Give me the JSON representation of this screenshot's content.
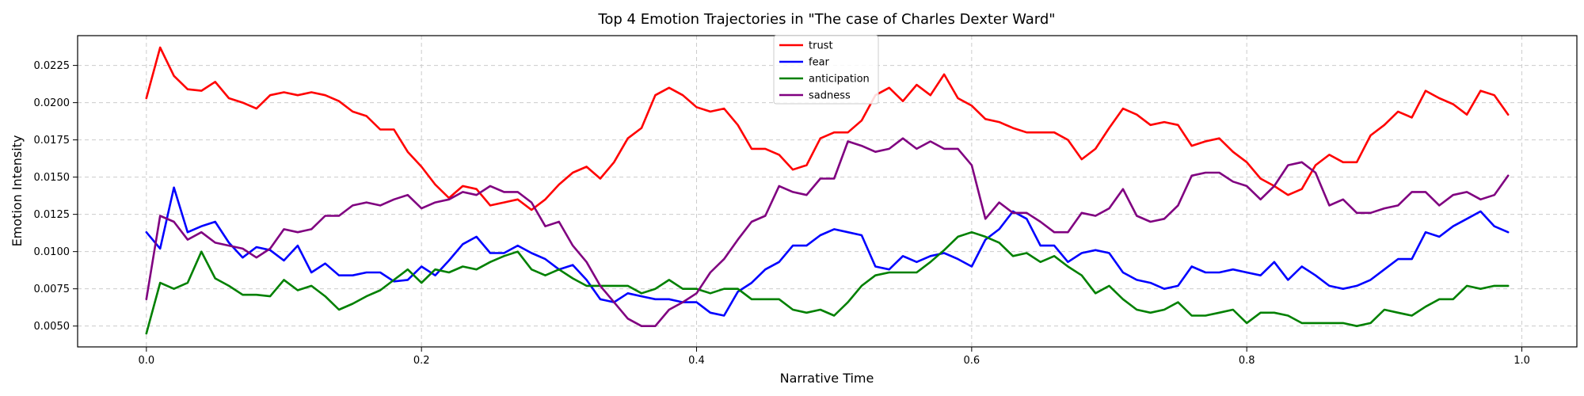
{
  "chart_data": {
    "type": "line",
    "title": "Top 4 Emotion Trajectories in \"The case of Charles Dexter Ward\"",
    "xlabel": "Narrative Time",
    "ylabel": "Emotion Intensity",
    "xlim": [
      -0.05,
      1.04
    ],
    "ylim": [
      0.0036,
      0.0245
    ],
    "grid": true,
    "legend_position": "top-center",
    "x_ticks": [
      0.0,
      0.2,
      0.4,
      0.6,
      0.8,
      1.0
    ],
    "x_tick_labels": [
      "0.0",
      "0.2",
      "0.4",
      "0.6",
      "0.8",
      "1.0"
    ],
    "y_ticks": [
      0.005,
      0.0075,
      0.01,
      0.0125,
      0.015,
      0.0175,
      0.02,
      0.0225
    ],
    "y_tick_labels": [
      "0.0050",
      "0.0075",
      "0.0100",
      "0.0125",
      "0.0150",
      "0.0175",
      "0.0200",
      "0.0225"
    ],
    "x_step": 0.01,
    "series": [
      {
        "name": "trust",
        "color": "#ff0000",
        "values": [
          0.0203,
          0.0237,
          0.0218,
          0.0209,
          0.0208,
          0.0214,
          0.0203,
          0.02,
          0.0196,
          0.0205,
          0.0207,
          0.0205,
          0.0207,
          0.0205,
          0.0201,
          0.0194,
          0.0191,
          0.0182,
          0.0182,
          0.0167,
          0.0157,
          0.0145,
          0.0136,
          0.0144,
          0.0142,
          0.0131,
          0.0133,
          0.0135,
          0.0128,
          0.0135,
          0.0145,
          0.0153,
          0.0157,
          0.0149,
          0.016,
          0.0176,
          0.0183,
          0.0205,
          0.021,
          0.0205,
          0.0197,
          0.0194,
          0.0196,
          0.0185,
          0.0169,
          0.0169,
          0.0165,
          0.0155,
          0.0158,
          0.0176,
          0.018,
          0.018,
          0.0188,
          0.0205,
          0.021,
          0.0201,
          0.0212,
          0.0205,
          0.0219,
          0.0203,
          0.0198,
          0.0189,
          0.0187,
          0.0183,
          0.018,
          0.018,
          0.018,
          0.0175,
          0.0162,
          0.0169,
          0.0183,
          0.0196,
          0.0192,
          0.0185,
          0.0187,
          0.0185,
          0.0171,
          0.0174,
          0.0176,
          0.0167,
          0.016,
          0.0149,
          0.0144,
          0.0138,
          0.0142,
          0.0158,
          0.0165,
          0.016,
          0.016,
          0.0178,
          0.0185,
          0.0194,
          0.019,
          0.0208,
          0.0203,
          0.0199,
          0.0192,
          0.0208,
          0.0205,
          0.0192
        ]
      },
      {
        "name": "fear",
        "color": "#0000ff",
        "values": [
          0.0113,
          0.0102,
          0.0143,
          0.0113,
          0.0117,
          0.012,
          0.0106,
          0.0096,
          0.0103,
          0.0101,
          0.0094,
          0.0104,
          0.0086,
          0.0092,
          0.0084,
          0.0084,
          0.0086,
          0.0086,
          0.008,
          0.0081,
          0.009,
          0.0084,
          0.0094,
          0.0105,
          0.011,
          0.0099,
          0.0099,
          0.0104,
          0.0099,
          0.0095,
          0.0088,
          0.0091,
          0.0081,
          0.0068,
          0.0066,
          0.0072,
          0.007,
          0.0068,
          0.0068,
          0.0066,
          0.0066,
          0.0059,
          0.0057,
          0.0073,
          0.0079,
          0.0088,
          0.0093,
          0.0104,
          0.0104,
          0.0111,
          0.0115,
          0.0113,
          0.0111,
          0.009,
          0.0088,
          0.0097,
          0.0093,
          0.0097,
          0.0099,
          0.0095,
          0.009,
          0.0108,
          0.0115,
          0.0127,
          0.0122,
          0.0104,
          0.0104,
          0.0093,
          0.0099,
          0.0101,
          0.0099,
          0.0086,
          0.0081,
          0.0079,
          0.0075,
          0.0077,
          0.009,
          0.0086,
          0.0086,
          0.0088,
          0.0086,
          0.0084,
          0.0093,
          0.0081,
          0.009,
          0.0084,
          0.0077,
          0.0075,
          0.0077,
          0.0081,
          0.0088,
          0.0095,
          0.0095,
          0.0113,
          0.011,
          0.0117,
          0.0122,
          0.0127,
          0.0117,
          0.0113
        ]
      },
      {
        "name": "anticipation",
        "color": "#008000",
        "values": [
          0.0045,
          0.0079,
          0.0075,
          0.0079,
          0.01,
          0.0082,
          0.0077,
          0.0071,
          0.0071,
          0.007,
          0.0081,
          0.0074,
          0.0077,
          0.007,
          0.0061,
          0.0065,
          0.007,
          0.0074,
          0.0081,
          0.0088,
          0.0079,
          0.0088,
          0.0086,
          0.009,
          0.0088,
          0.0093,
          0.0097,
          0.01,
          0.0088,
          0.0084,
          0.0088,
          0.0082,
          0.0077,
          0.0077,
          0.0077,
          0.0077,
          0.0072,
          0.0075,
          0.0081,
          0.0075,
          0.0075,
          0.0072,
          0.0075,
          0.0075,
          0.0068,
          0.0068,
          0.0068,
          0.0061,
          0.0059,
          0.0061,
          0.0057,
          0.0066,
          0.0077,
          0.0084,
          0.0086,
          0.0086,
          0.0086,
          0.0093,
          0.0101,
          0.011,
          0.0113,
          0.011,
          0.0106,
          0.0097,
          0.0099,
          0.0093,
          0.0097,
          0.009,
          0.0084,
          0.0072,
          0.0077,
          0.0068,
          0.0061,
          0.0059,
          0.0061,
          0.0066,
          0.0057,
          0.0057,
          0.0059,
          0.0061,
          0.0052,
          0.0059,
          0.0059,
          0.0057,
          0.0052,
          0.0052,
          0.0052,
          0.0052,
          0.005,
          0.0052,
          0.0061,
          0.0059,
          0.0057,
          0.0063,
          0.0068,
          0.0068,
          0.0077,
          0.0075,
          0.0077,
          0.0077
        ]
      },
      {
        "name": "sadness",
        "color": "#800080",
        "values": [
          0.0068,
          0.0124,
          0.012,
          0.0108,
          0.0113,
          0.0106,
          0.0104,
          0.0102,
          0.0096,
          0.0102,
          0.0115,
          0.0113,
          0.0115,
          0.0124,
          0.0124,
          0.0131,
          0.0133,
          0.0131,
          0.0135,
          0.0138,
          0.0129,
          0.0133,
          0.0135,
          0.014,
          0.0138,
          0.0144,
          0.014,
          0.014,
          0.0133,
          0.0117,
          0.012,
          0.0104,
          0.0093,
          0.0077,
          0.0066,
          0.0055,
          0.005,
          0.005,
          0.0061,
          0.0066,
          0.0072,
          0.0086,
          0.0095,
          0.0108,
          0.012,
          0.0124,
          0.0144,
          0.014,
          0.0138,
          0.0149,
          0.0149,
          0.0174,
          0.0171,
          0.0167,
          0.0169,
          0.0176,
          0.0169,
          0.0174,
          0.0169,
          0.0169,
          0.0158,
          0.0122,
          0.0133,
          0.0126,
          0.0126,
          0.012,
          0.0113,
          0.0113,
          0.0126,
          0.0124,
          0.0129,
          0.0142,
          0.0124,
          0.012,
          0.0122,
          0.0131,
          0.0151,
          0.0153,
          0.0153,
          0.0147,
          0.0144,
          0.0135,
          0.0144,
          0.0158,
          0.016,
          0.0153,
          0.0131,
          0.0135,
          0.0126,
          0.0126,
          0.0129,
          0.0131,
          0.014,
          0.014,
          0.0131,
          0.0138,
          0.014,
          0.0135,
          0.0138,
          0.0151
        ]
      }
    ]
  }
}
